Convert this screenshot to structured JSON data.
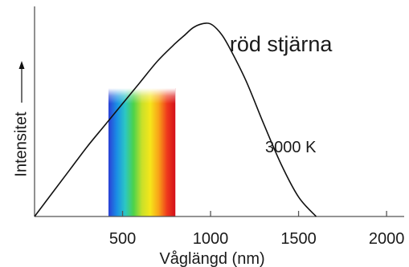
{
  "chart_data": {
    "type": "line",
    "title": "",
    "xlabel": "Våglängd (nm)",
    "ylabel": "Intensitet",
    "xlim": [
      0,
      2100
    ],
    "ylim": [
      0,
      1.08
    ],
    "x_ticks": [
      500,
      1000,
      1500,
      2000
    ],
    "x_tick_labels": [
      "500",
      "1000",
      "1500",
      "2000"
    ],
    "y_ticks_shown": false,
    "grid": false,
    "series": [
      {
        "x": [
          0,
          100,
          200,
          300,
          400,
          500,
          600,
          700,
          800,
          850,
          900,
          950,
          1000,
          1050,
          1100,
          1200,
          1300,
          1400,
          1500,
          1600
        ],
        "y": [
          0.0,
          0.12,
          0.24,
          0.36,
          0.47,
          0.58,
          0.69,
          0.8,
          0.89,
          0.93,
          0.97,
          0.99,
          0.99,
          0.95,
          0.88,
          0.7,
          0.48,
          0.27,
          0.1,
          0.0
        ]
      }
    ],
    "visible_spectrum": {
      "x_start": 420,
      "x_end": 800,
      "colors": [
        "#2b3fd6",
        "#1a8fe6",
        "#2cc7c4",
        "#4cd34a",
        "#c8e02a",
        "#f6e61a",
        "#f8a318",
        "#ef3a1c",
        "#d3101a"
      ]
    },
    "annotations": [
      {
        "text": "röd stjärna",
        "x": 1400,
        "y": 0.85
      },
      {
        "text": "3000 K",
        "x": 1455,
        "y": 0.33
      }
    ]
  }
}
